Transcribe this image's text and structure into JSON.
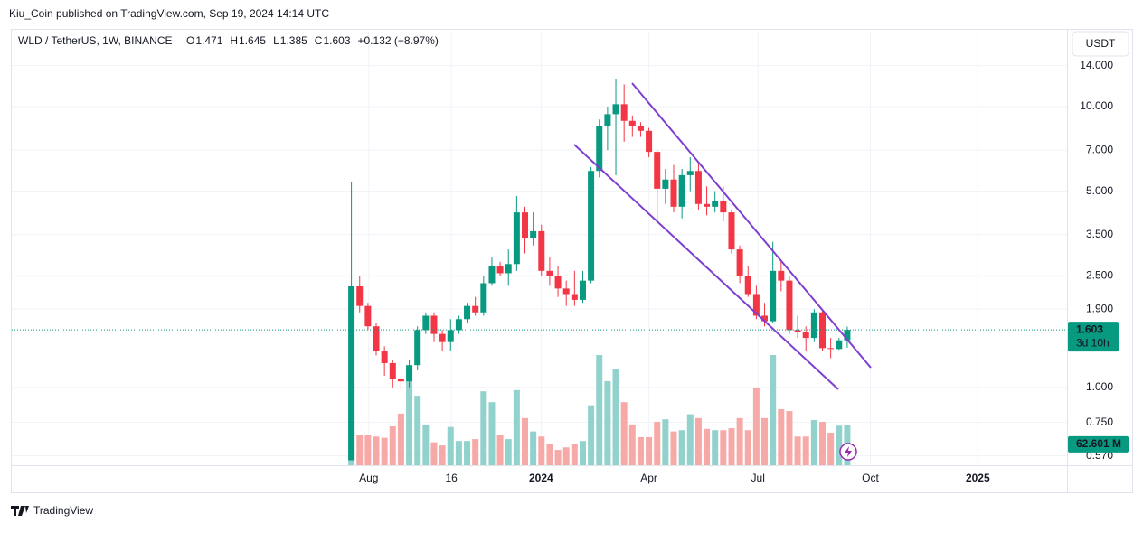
{
  "header": {
    "publisher": "Kiu_Coin published on TradingView.com, Sep 19, 2024 14:14 UTC"
  },
  "footer": {
    "brand": "TradingView"
  },
  "chart_data": {
    "type": "candlestick",
    "symbol": "WLD / TetherUS, 1W, BINANCE",
    "ohlc_letters": [
      "O",
      "H",
      "L",
      "C"
    ],
    "change": "+0.132 (+8.97%)",
    "currency": "USDT",
    "countdown": "3d 10h",
    "log_scale": true,
    "grid": true,
    "up_color": "#089981",
    "down_color": "#f23645",
    "volume_up_color": "#92d2cc",
    "volume_down_color": "#f7a9a7",
    "categories": [
      null,
      null,
      null,
      null,
      null,
      null,
      null,
      null,
      null,
      null,
      null,
      null,
      null,
      null,
      null,
      null,
      null,
      null,
      null,
      null,
      null,
      null,
      null,
      null,
      null,
      null,
      null,
      null,
      null,
      null,
      null,
      null,
      null,
      null,
      null,
      null,
      null,
      null,
      null,
      null,
      null,
      null,
      null,
      null,
      null,
      null,
      null,
      null,
      null,
      null,
      null,
      null,
      null,
      null,
      null,
      null,
      null,
      null,
      null,
      null,
      null
    ],
    "open": [
      0.55,
      2.29,
      1.95,
      1.65,
      1.35,
      1.22,
      1.07,
      1.05,
      1.2,
      1.6,
      1.8,
      1.55,
      1.45,
      1.6,
      1.75,
      1.95,
      1.85,
      2.35,
      2.7,
      2.55,
      2.75,
      4.2,
      3.4,
      3.6,
      2.6,
      2.5,
      2.25,
      2.15,
      2.05,
      2.4,
      5.9,
      8.5,
      9.4,
      10.2,
      8.9,
      8.5,
      8.2,
      6.9,
      5.1,
      5.5,
      4.4,
      5.7,
      5.9,
      4.5,
      4.4,
      4.6,
      4.2,
      3.1,
      2.5,
      2.15,
      1.8,
      1.72,
      2.6,
      2.4,
      1.6,
      1.58,
      1.5,
      1.85,
      1.38,
      1.37,
      1.471
    ],
    "high": [
      5.4,
      2.5,
      2.0,
      1.7,
      1.4,
      1.25,
      1.1,
      1.25,
      1.65,
      1.85,
      1.85,
      1.6,
      1.75,
      1.8,
      2.0,
      2.1,
      2.5,
      2.9,
      2.8,
      3.1,
      4.8,
      4.4,
      4.2,
      3.8,
      2.9,
      2.7,
      2.4,
      2.6,
      2.6,
      6.1,
      9.0,
      10.0,
      12.5,
      12.0,
      9.3,
      8.8,
      8.4,
      7.0,
      6.0,
      6.2,
      6.0,
      6.6,
      6.3,
      5.2,
      5.0,
      5.2,
      4.3,
      3.2,
      2.7,
      2.3,
      2.0,
      3.3,
      2.8,
      2.5,
      1.8,
      1.65,
      1.9,
      1.9,
      1.5,
      1.5,
      1.645
    ],
    "low": [
      0.55,
      1.85,
      1.6,
      1.3,
      1.1,
      1.0,
      0.98,
      1.0,
      1.15,
      1.55,
      1.45,
      1.35,
      1.35,
      1.55,
      1.7,
      1.8,
      1.8,
      2.3,
      2.5,
      2.3,
      2.6,
      3.0,
      3.2,
      2.5,
      2.3,
      2.1,
      1.95,
      1.95,
      2.0,
      2.35,
      5.6,
      7.0,
      5.7,
      7.5,
      7.8,
      7.8,
      6.6,
      3.9,
      4.5,
      4.2,
      4.0,
      5.0,
      4.3,
      4.1,
      4.2,
      3.9,
      3.0,
      2.35,
      2.1,
      1.75,
      1.65,
      1.7,
      2.2,
      1.55,
      1.5,
      1.35,
      1.45,
      1.35,
      1.27,
      1.36,
      1.385
    ],
    "close": [
      2.29,
      1.95,
      1.65,
      1.35,
      1.22,
      1.07,
      1.05,
      1.2,
      1.6,
      1.8,
      1.55,
      1.45,
      1.6,
      1.75,
      1.95,
      1.85,
      2.35,
      2.7,
      2.55,
      2.75,
      4.2,
      3.4,
      3.6,
      2.6,
      2.5,
      2.25,
      2.15,
      2.05,
      2.4,
      5.9,
      8.5,
      9.4,
      10.2,
      8.9,
      8.5,
      8.2,
      6.9,
      5.1,
      5.5,
      4.4,
      5.7,
      5.9,
      4.5,
      4.4,
      4.6,
      4.2,
      3.1,
      2.5,
      2.15,
      1.8,
      1.72,
      2.6,
      2.4,
      1.6,
      1.58,
      1.5,
      1.85,
      1.38,
      1.37,
      1.471,
      1.603
    ],
    "volume": {
      "values": [
        132,
        48,
        48,
        45,
        43,
        61,
        81,
        135,
        109,
        64,
        36,
        31,
        60,
        38,
        38,
        41,
        116,
        99,
        48,
        41,
        118,
        74,
        53,
        45,
        33,
        24,
        28,
        34,
        38,
        94,
        173,
        132,
        151,
        99,
        64,
        44,
        44,
        68,
        72,
        53,
        55,
        80,
        74,
        57,
        55,
        55,
        58,
        74,
        55,
        122,
        74,
        173,
        88,
        85,
        45,
        45,
        71,
        68,
        51,
        62,
        62.601
      ],
      "last_label": "62.601 M"
    },
    "ylim": [
      0.528,
      18.5
    ],
    "yticks": [
      {
        "value": 0.57,
        "label": "0.570"
      },
      {
        "value": 0.75,
        "label": "0.750"
      },
      {
        "value": 1.0,
        "label": "1.000"
      },
      {
        "value": 1.9,
        "label": "1.900"
      },
      {
        "value": 2.5,
        "label": "2.500"
      },
      {
        "value": 3.5,
        "label": "3.500"
      },
      {
        "value": 5.0,
        "label": "5.000"
      },
      {
        "value": 7.0,
        "label": "7.000"
      },
      {
        "value": 10.0,
        "label": "10.000"
      },
      {
        "value": 14.0,
        "label": "14.000"
      }
    ],
    "xlim": [
      -41.1,
      86.6
    ],
    "xticks": [
      {
        "value": 2.1,
        "label": "Aug"
      },
      {
        "value": 12.1,
        "label": "16"
      },
      {
        "value": 22.95,
        "label": "2024"
      },
      {
        "value": 36.0,
        "label": "Apr"
      },
      {
        "value": 49.2,
        "label": "Jul"
      },
      {
        "value": 62.8,
        "label": "Oct"
      },
      {
        "value": 75.8,
        "label": "2025"
      }
    ]
  }
}
